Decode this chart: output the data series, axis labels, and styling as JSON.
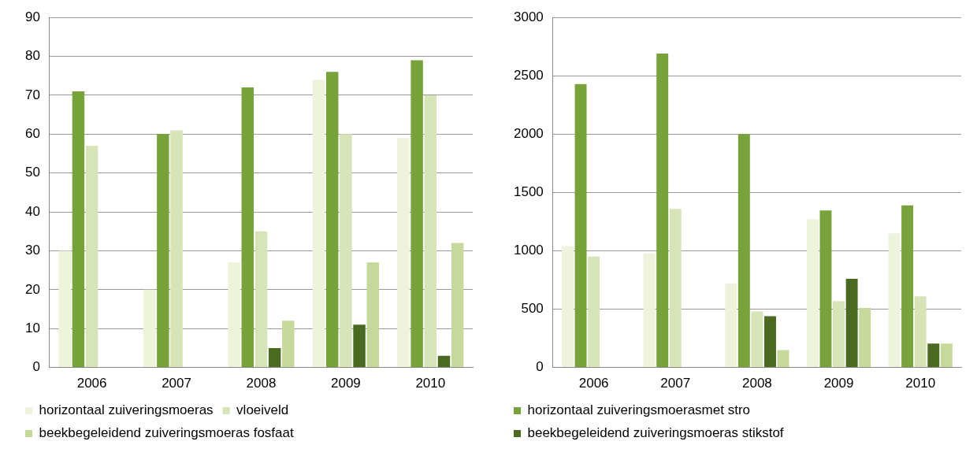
{
  "chart_data": [
    {
      "type": "bar",
      "categories": [
        "2006",
        "2007",
        "2008",
        "2009",
        "2010"
      ],
      "ylim": [
        0,
        90
      ],
      "yticks": [
        0,
        10,
        20,
        30,
        40,
        50,
        60,
        70,
        80,
        90
      ],
      "grid": "y",
      "legend": "bottom",
      "series": [
        {
          "name": "horizontaal zuiveringsmoeras",
          "color": "#eef3dc",
          "values": [
            30,
            20,
            27,
            74,
            59
          ]
        },
        {
          "color": "#77a33a",
          "values": [
            71,
            60,
            72,
            76,
            79
          ]
        },
        {
          "name": "vloeiveld",
          "color": "#d6e4b8",
          "values": [
            57,
            61,
            35,
            60,
            70
          ]
        },
        {
          "color": "#4a6a22",
          "values": [
            null,
            null,
            5,
            11,
            3
          ]
        },
        {
          "name": "beekbegeleidend zuiveringsmoeras fosfaat",
          "color": "#c6d89a",
          "values": [
            null,
            null,
            12,
            27,
            32
          ]
        }
      ]
    },
    {
      "type": "bar",
      "categories": [
        "2006",
        "2007",
        "2008",
        "2009",
        "2010"
      ],
      "ylim": [
        0,
        3000
      ],
      "yticks": [
        0,
        500,
        1000,
        1500,
        2000,
        2500,
        3000
      ],
      "grid": "y",
      "legend": "bottom",
      "series": [
        {
          "color": "#eef3dc",
          "values": [
            1040,
            980,
            720,
            1270,
            1150
          ]
        },
        {
          "name": "horizontaal zuiveringsmoerasmet stro",
          "color": "#77a33a",
          "values": [
            2430,
            2690,
            2000,
            1345,
            1390
          ]
        },
        {
          "color": "#d6e4b8",
          "values": [
            950,
            1360,
            480,
            570,
            610
          ]
        },
        {
          "name": "beekbegeleidend zuiveringsmoeras stikstof",
          "color": "#4a6a22",
          "values": [
            null,
            null,
            440,
            760,
            205
          ]
        },
        {
          "color": "#c6d89a",
          "values": [
            null,
            null,
            150,
            510,
            205
          ]
        }
      ]
    }
  ]
}
